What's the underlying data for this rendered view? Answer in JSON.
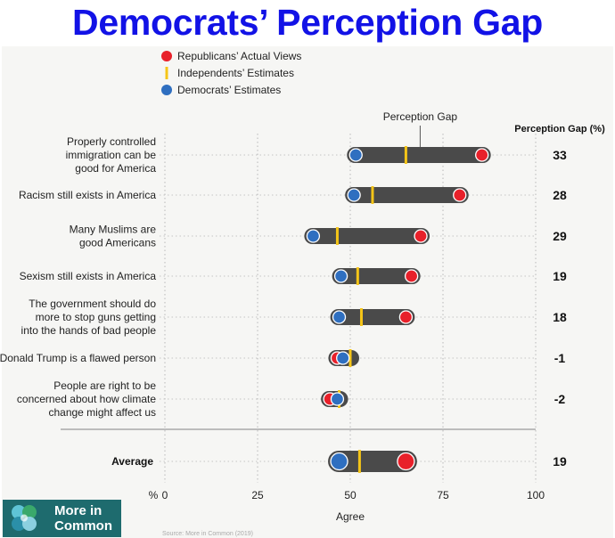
{
  "headline": "Democrats’ Perception Gap",
  "legend": [
    {
      "label": "Republicans’ Actual Views",
      "color": "#e8202a",
      "shape": "circle"
    },
    {
      "label": "Independents’ Estimates",
      "color": "#f5c518",
      "shape": "bar"
    },
    {
      "label": "Democrats’ Estimates",
      "color": "#2f6fc0",
      "shape": "circle"
    }
  ],
  "chart_data": {
    "type": "dumbbell",
    "xlabel": "Agree",
    "x_unit": "%",
    "xlim": [
      0,
      100
    ],
    "xticks": [
      0,
      25,
      50,
      75,
      100
    ],
    "annotation": "Perception Gap",
    "gap_header": "Perception Gap (%)",
    "source": "Source: More in Common (2019)",
    "colors": {
      "republicans": "#e8202a",
      "independents": "#f5c518",
      "democrats": "#2f6fc0",
      "bar": "#4a4a4a"
    },
    "rows": [
      {
        "label": [
          "Properly controlled",
          "immigration can be",
          "good for America"
        ],
        "democrats": 51.5,
        "independents": 65,
        "republicans": 85.5,
        "gap": "33"
      },
      {
        "label": [
          "Racism still exists in America"
        ],
        "democrats": 51,
        "independents": 56,
        "republicans": 79.5,
        "gap": "28"
      },
      {
        "label": [
          "Many Muslims are",
          "good Americans"
        ],
        "democrats": 40,
        "independents": 46.5,
        "republicans": 69,
        "gap": "29"
      },
      {
        "label": [
          "Sexism still exists in America"
        ],
        "democrats": 47.5,
        "independents": 52,
        "republicans": 66.5,
        "gap": "19"
      },
      {
        "label": [
          "The government should do",
          "more to stop guns getting",
          "into the hands of bad people"
        ],
        "democrats": 47,
        "independents": 53,
        "republicans": 65,
        "gap": "18"
      },
      {
        "label": [
          "Donald Trump is a flawed person"
        ],
        "democrats": 48,
        "independents": 50,
        "republicans": 46.5,
        "gap": "-1"
      },
      {
        "label": [
          "People are right to be",
          "concerned about how climate",
          "change might affect us"
        ],
        "democrats": 46.5,
        "independents": 47,
        "republicans": 44.5,
        "gap": "-2"
      }
    ],
    "average": {
      "label": "Average",
      "democrats": 47,
      "independents": 52.5,
      "republicans": 65,
      "gap": "19"
    }
  },
  "logo": {
    "line1": "More in",
    "line2": "Common"
  }
}
